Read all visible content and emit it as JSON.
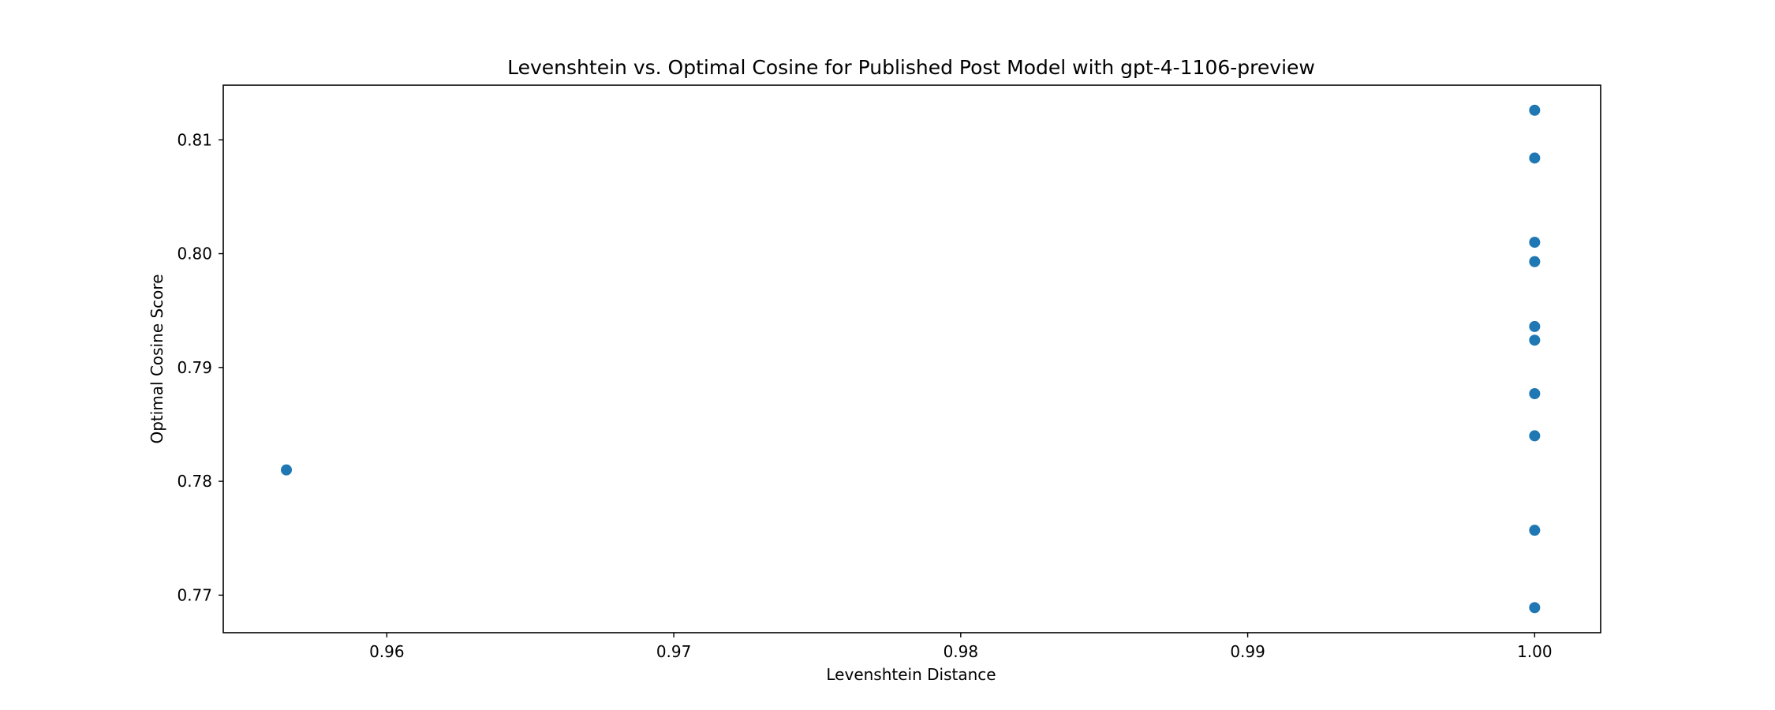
{
  "chart_data": {
    "type": "scatter",
    "title": "Levenshtein vs. Optimal Cosine for Published Post Model with gpt-4-1106-preview",
    "xlabel": "Levenshtein Distance",
    "ylabel": "Optimal Cosine Score",
    "xlim": [
      0.9543,
      1.0023
    ],
    "ylim": [
      0.8148,
      0.7667
    ],
    "y_inverted": true,
    "x_ticks": [
      0.96,
      0.97,
      0.98,
      0.99,
      1.0
    ],
    "x_tick_labels": [
      "0.96",
      "0.97",
      "0.98",
      "0.99",
      "1.00"
    ],
    "y_ticks": [
      0.77,
      0.78,
      0.79,
      0.8,
      0.81
    ],
    "y_tick_labels": [
      "0.77",
      "0.78",
      "0.79",
      "0.80",
      "0.81"
    ],
    "grid": false,
    "legend": "none",
    "marker_color": "#1f77b4",
    "points": [
      {
        "x": 0.9565,
        "y": 0.781
      },
      {
        "x": 1.0,
        "y": 0.7689
      },
      {
        "x": 1.0,
        "y": 0.7757
      },
      {
        "x": 1.0,
        "y": 0.784
      },
      {
        "x": 1.0,
        "y": 0.7877
      },
      {
        "x": 1.0,
        "y": 0.7924
      },
      {
        "x": 1.0,
        "y": 0.7936
      },
      {
        "x": 1.0,
        "y": 0.7993
      },
      {
        "x": 1.0,
        "y": 0.801
      },
      {
        "x": 1.0,
        "y": 0.8084
      },
      {
        "x": 1.0,
        "y": 0.8126
      }
    ]
  }
}
